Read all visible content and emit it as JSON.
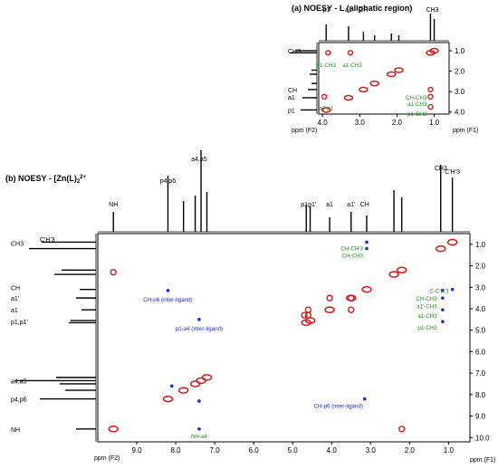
{
  "chart_data": [
    {
      "type": "scatter",
      "title": "(a) NOESY - L (aliphatic region)",
      "xlabel": "ppm (F2)",
      "ylabel": "ppm (F1)",
      "xlim": [
        4.1,
        0.6
      ],
      "ylim": [
        0.6,
        4.1
      ],
      "xticks": [
        "4.0",
        "3.0",
        "2.0",
        "1.0"
      ],
      "yticks": [
        "1.0",
        "2.0",
        "3.0",
        "4.0"
      ],
      "top_labels": [
        "p1",
        "a1",
        "CH",
        "CH3"
      ],
      "left_labels": [
        "CH3",
        "CH",
        "a1",
        "p1"
      ],
      "annotations": [
        {
          "text": "p1-CH3",
          "x": 3.9,
          "y": 1.35,
          "color": "green"
        },
        {
          "text": "a1-CH3",
          "x": 3.2,
          "y": 1.35,
          "color": "green"
        },
        {
          "text": "CH-CH3",
          "x": 1.1,
          "y": 2.95,
          "color": "green"
        },
        {
          "text": "a1-CH3",
          "x": 1.1,
          "y": 3.25,
          "color": "green"
        },
        {
          "text": "p1-CH3",
          "x": 1.1,
          "y": 3.75,
          "color": "green"
        },
        {
          "text": "a1-p1",
          "x": 3.9,
          "y": 3.45,
          "color": "green"
        }
      ],
      "diagonal_peaks": [
        [
          3.9,
          3.9
        ],
        [
          3.3,
          3.3
        ],
        [
          2.9,
          2.9
        ],
        [
          2.6,
          2.6
        ],
        [
          2.15,
          2.15
        ],
        [
          1.95,
          1.95
        ],
        [
          1.1,
          1.1
        ],
        [
          1.0,
          1.0
        ]
      ],
      "cross_peaks": [
        [
          3.85,
          1.1
        ],
        [
          3.25,
          1.1
        ],
        [
          1.1,
          2.9
        ],
        [
          1.1,
          3.25
        ],
        [
          1.1,
          3.75
        ],
        [
          3.95,
          3.25
        ]
      ]
    },
    {
      "type": "scatter",
      "title": "(b) NOESY - [Zn(L)2]2+",
      "xlabel": "ppm (F2)",
      "ylabel": "ppm (F1)",
      "xlim": [
        10.0,
        0.45
      ],
      "ylim": [
        0.5,
        10.2
      ],
      "xticks": [
        "9.0",
        "8.0",
        "7.0",
        "6.0",
        "5.0",
        "4.0",
        "3.0",
        "2.0",
        "1.0"
      ],
      "yticks": [
        "1.0",
        "2.0",
        "3.0",
        "4.0",
        "5.0",
        "6.0",
        "7.0",
        "8.0",
        "9.0",
        "10.0"
      ],
      "top_labels": [
        "NH",
        "p4,p6",
        "a4,a5",
        "p1",
        "p1'",
        "a1",
        "a1'",
        "CH",
        "CH3",
        "C'H'3"
      ],
      "left_labels": [
        "CH3",
        "C'H'3",
        "CH",
        "a1'",
        "a1",
        "p1,p1'",
        "a4,a5",
        "p4,p6",
        "NH"
      ],
      "annotations": [
        {
          "text": "CH-CH'3",
          "x": 3.1,
          "y": 0.85,
          "color": "green"
        },
        {
          "text": "CH-CH3",
          "x": 3.1,
          "y": 1.2,
          "color": "green"
        },
        {
          "text": "C-C'H'3",
          "x": 0.9,
          "y": 2.85,
          "color": "green"
        },
        {
          "text": "CH-CH3",
          "x": 1.2,
          "y": 3.2,
          "color": "green"
        },
        {
          "text": "a1'-CH3",
          "x": 1.2,
          "y": 3.55,
          "color": "green"
        },
        {
          "text": "a1-CH3",
          "x": 1.2,
          "y": 4.0,
          "color": "green"
        },
        {
          "text": "p1-CH3",
          "x": 1.2,
          "y": 4.55,
          "color": "green"
        },
        {
          "text": "CH-p6 (inter-ligand)",
          "x": 8.2,
          "y": 3.25,
          "color": "blue"
        },
        {
          "text": "p1-a4 (inter-ligand)",
          "x": 7.4,
          "y": 4.6,
          "color": "blue"
        },
        {
          "text": "CH-p6 (inter-ligand)",
          "x": 3.1,
          "y": 8.2,
          "color": "blue"
        },
        {
          "text": "NH-a4",
          "x": 7.4,
          "y": 9.6,
          "color": "green"
        }
      ],
      "diagonal_peaks": [
        [
          9.6,
          9.6
        ],
        [
          8.2,
          8.2
        ],
        [
          7.8,
          7.8
        ],
        [
          7.5,
          7.5
        ],
        [
          7.35,
          7.35
        ],
        [
          7.2,
          7.2
        ],
        [
          4.65,
          4.65
        ],
        [
          4.55,
          4.55
        ],
        [
          4.05,
          4.05
        ],
        [
          3.5,
          3.5
        ],
        [
          3.1,
          3.1
        ],
        [
          2.4,
          2.4
        ],
        [
          2.2,
          2.2
        ],
        [
          1.2,
          1.2
        ],
        [
          0.9,
          0.9
        ]
      ],
      "cross_peaks": [
        [
          9.6,
          2.3
        ],
        [
          2.2,
          9.6
        ],
        [
          4.7,
          4.3
        ],
        [
          4.6,
          4.3
        ],
        [
          4.6,
          4.05
        ],
        [
          4.05,
          3.5
        ],
        [
          3.5,
          4.05
        ],
        [
          3.5,
          3.5
        ]
      ],
      "inter_peaks": [
        [
          8.2,
          3.15
        ],
        [
          7.4,
          4.5
        ],
        [
          3.15,
          8.2
        ],
        [
          7.4,
          9.6
        ],
        [
          8.1,
          7.6
        ],
        [
          7.4,
          8.3
        ],
        [
          3.1,
          0.9
        ],
        [
          3.1,
          1.2
        ],
        [
          1.15,
          3.15
        ],
        [
          1.15,
          3.5
        ],
        [
          1.15,
          4.05
        ],
        [
          1.15,
          4.6
        ],
        [
          0.9,
          3.1
        ]
      ]
    }
  ]
}
